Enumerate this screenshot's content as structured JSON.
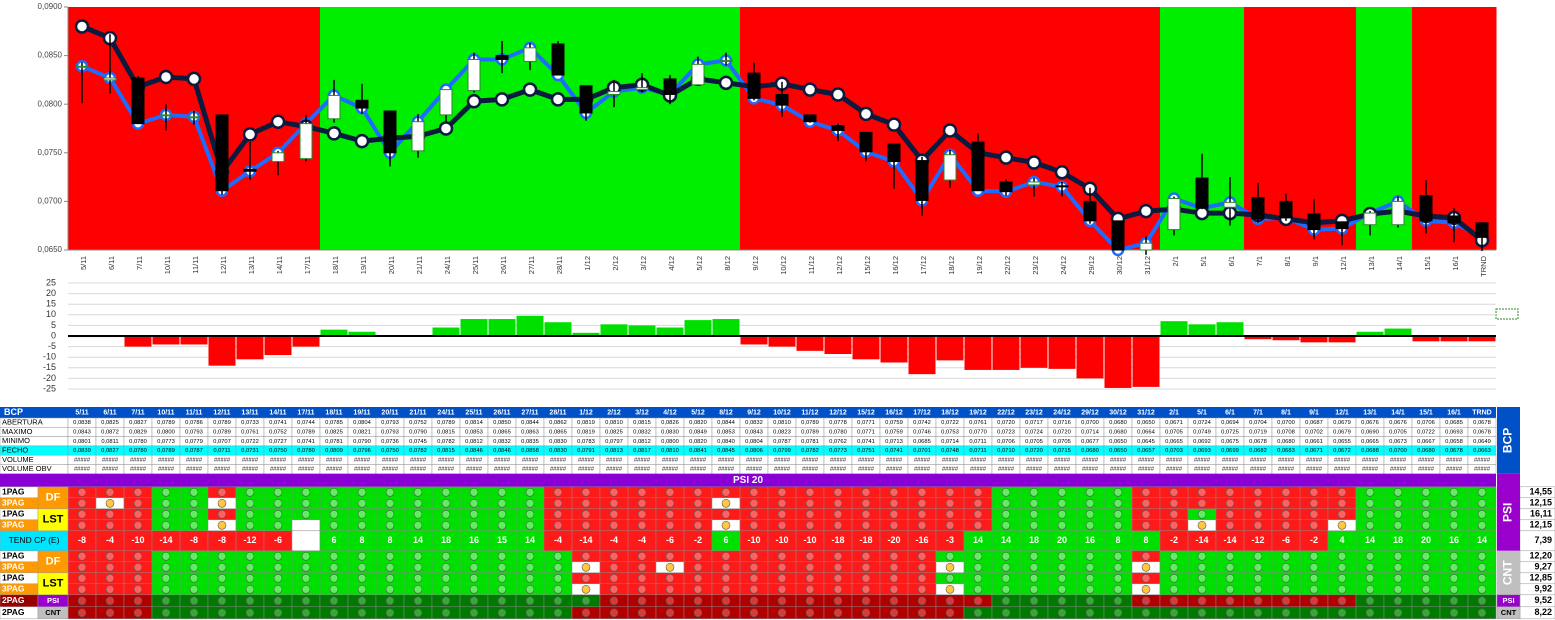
{
  "chart_data": [
    {
      "type": "candlestick",
      "categories": [
        "5/11",
        "6/11",
        "7/11",
        "10/11",
        "11/11",
        "12/11",
        "13/11",
        "14/11",
        "17/11",
        "18/11",
        "19/11",
        "20/11",
        "21/11",
        "24/11",
        "25/11",
        "26/11",
        "27/11",
        "28/11",
        "1/12",
        "2/12",
        "3/12",
        "4/12",
        "5/12",
        "8/12",
        "9/12",
        "10/12",
        "11/12",
        "12/12",
        "15/12",
        "16/12",
        "17/12",
        "18/12",
        "19/12",
        "22/12",
        "23/12",
        "24/12",
        "29/12",
        "30/12",
        "31/12",
        "2/1",
        "5/1",
        "6/1",
        "7/1",
        "8/1",
        "9/1",
        "12/1",
        "13/1",
        "14/1",
        "15/1",
        "16/1",
        "TRND"
      ],
      "ohlc": [
        {
          "name": "ABERTURA",
          "values": [
            0.0838,
            0.0825,
            0.0827,
            0.0789,
            0.0786,
            0.0789,
            0.0733,
            0.0741,
            0.0744,
            0.0785,
            0.0804,
            0.0793,
            0.0752,
            0.0789,
            0.0814,
            0.085,
            0.0844,
            0.0862,
            0.0819,
            0.081,
            0.0815,
            0.0826,
            0.082,
            0.0844,
            0.0832,
            0.081,
            0.0789,
            0.0778,
            0.0771,
            0.0759,
            0.0742,
            0.0722,
            0.0761,
            0.072,
            0.0717,
            0.0716,
            0.07,
            0.068,
            0.065,
            0.0671,
            0.0724,
            0.0694,
            0.0704,
            0.07,
            0.0687,
            0.0679,
            0.0676,
            0.0676,
            0.0706,
            0.0685,
            0.0678
          ],
          "value_labels": [
            "0,0838",
            "0,0825",
            "0,0827",
            "0,0789",
            "0,0786",
            "0,0789",
            "0,0733",
            "0,0741",
            "0,0744",
            "0,0785",
            "0,0804",
            "0,0793",
            "0,0752",
            "0,0789",
            "0,0814",
            "0,0850",
            "0,0844",
            "0,0862",
            "0,0819",
            "0,0810",
            "0,0815",
            "0,0826",
            "0,0820",
            "0,0844",
            "0,0832",
            "0,0810",
            "0,0789",
            "0,0778",
            "0,0771",
            "0,0759",
            "0,0742",
            "0,0722",
            "0,0761",
            "0,0720",
            "0,0717",
            "0,0716",
            "0,0700",
            "0,0680",
            "0,0650",
            "0,0671",
            "0,0724",
            "0,0694",
            "0,0704",
            "0,0700",
            "0,0687",
            "0,0679",
            "0,0676",
            "0,0676",
            "0,0706",
            "0,0685",
            "0,0678"
          ]
        },
        {
          "name": "MAXIMO",
          "values": [
            0.0843,
            0.0872,
            0.0829,
            0.08,
            0.0793,
            0.0789,
            0.0761,
            0.0752,
            0.0789,
            0.0825,
            0.0821,
            0.0793,
            0.079,
            0.0815,
            0.0853,
            0.0865,
            0.0863,
            0.0865,
            0.0819,
            0.0825,
            0.0832,
            0.083,
            0.0849,
            0.0853,
            0.0843,
            0.0823,
            0.0789,
            0.078,
            0.0771,
            0.0759,
            0.0746,
            0.0753,
            0.077,
            0.0723,
            0.0724,
            0.072,
            0.0714,
            0.068,
            0.0664,
            0.0705,
            0.0749,
            0.0725,
            0.0719,
            0.0708,
            0.0702,
            0.0679,
            0.069,
            0.0705,
            0.0722,
            0.0693,
            0.0678
          ],
          "value_labels": [
            "0,0843",
            "0,0872",
            "0,0829",
            "0,0800",
            "0,0793",
            "0,0789",
            "0,0761",
            "0,0752",
            "0,0789",
            "0,0825",
            "0,0821",
            "0,0793",
            "0,0790",
            "0,0815",
            "0,0853",
            "0,0865",
            "0,0863",
            "0,0865",
            "0,0819",
            "0,0825",
            "0,0832",
            "0,0830",
            "0,0849",
            "0,0853",
            "0,0843",
            "0,0823",
            "0,0789",
            "0,0780",
            "0,0771",
            "0,0759",
            "0,0746",
            "0,0753",
            "0,0770",
            "0,0723",
            "0,0724",
            "0,0720",
            "0,0714",
            "0,0680",
            "0,0664",
            "0,0705",
            "0,0749",
            "0,0725",
            "0,0719",
            "0,0708",
            "0,0702",
            "0,0679",
            "0,0690",
            "0,0705",
            "0,0722",
            "0,0693",
            "0,0678"
          ]
        },
        {
          "name": "MINIMO",
          "values": [
            0.0801,
            0.0811,
            0.078,
            0.0773,
            0.0779,
            0.0707,
            0.0722,
            0.0727,
            0.0741,
            0.0781,
            0.079,
            0.0736,
            0.0745,
            0.0782,
            0.0812,
            0.0832,
            0.0835,
            0.083,
            0.0783,
            0.0797,
            0.0812,
            0.08,
            0.082,
            0.084,
            0.0804,
            0.0787,
            0.0781,
            0.0762,
            0.0741,
            0.0713,
            0.0685,
            0.0714,
            0.0711,
            0.0706,
            0.0705,
            0.0705,
            0.0677,
            0.065,
            0.0645,
            0.0665,
            0.0692,
            0.0675,
            0.0678,
            0.068,
            0.0661,
            0.0655,
            0.0665,
            0.0673,
            0.0667,
            0.0658,
            0.0649
          ],
          "value_labels": [
            "0,0801",
            "0,0811",
            "0,0780",
            "0,0773",
            "0,0779",
            "0,0707",
            "0,0722",
            "0,0727",
            "0,0741",
            "0,0781",
            "0,0790",
            "0,0736",
            "0,0745",
            "0,0782",
            "0,0812",
            "0,0832",
            "0,0835",
            "0,0830",
            "0,0783",
            "0,0797",
            "0,0812",
            "0,0800",
            "0,0820",
            "0,0840",
            "0,0804",
            "0,0787",
            "0,0781",
            "0,0762",
            "0,0741",
            "0,0713",
            "0,0685",
            "0,0714",
            "0,0711",
            "0,0706",
            "0,0705",
            "0,0705",
            "0,0677",
            "0,0650",
            "0,0645",
            "0,0665",
            "0,0692",
            "0,0675",
            "0,0678",
            "0,0680",
            "0,0661",
            "0,0655",
            "0,0665",
            "0,0673",
            "0,0667",
            "0,0658",
            "0,0649"
          ]
        },
        {
          "name": "FECHO",
          "values": [
            0.0839,
            0.0827,
            0.078,
            0.0789,
            0.0787,
            0.0711,
            0.0731,
            0.075,
            0.078,
            0.0809,
            0.0796,
            0.075,
            0.0782,
            0.0815,
            0.0846,
            0.0846,
            0.0858,
            0.083,
            0.0791,
            0.0813,
            0.0817,
            0.081,
            0.0841,
            0.0845,
            0.0806,
            0.0799,
            0.0782,
            0.0773,
            0.0751,
            0.0741,
            0.0701,
            0.0748,
            0.0711,
            0.071,
            0.072,
            0.0715,
            0.068,
            0.065,
            0.0657,
            0.0703,
            0.0693,
            0.0699,
            0.0682,
            0.0683,
            0.0671,
            0.0672,
            0.0688,
            0.07,
            0.068,
            0.0678,
            0.0663
          ],
          "value_labels": [
            "0,0839",
            "0,0827",
            "0,0780",
            "0,0789",
            "0,0787",
            "0,0711",
            "0,0731",
            "0,0750",
            "0,0780",
            "0,0809",
            "0,0796",
            "0,0750",
            "0,0782",
            "0,0815",
            "0,0846",
            "0,0846",
            "0,0858",
            "0,0830",
            "0,0791",
            "0,0813",
            "0,0817",
            "0,0810",
            "0,0841",
            "0,0845",
            "0,0806",
            "0,0799",
            "0,0782",
            "0,0773",
            "0,0751",
            "0,0741",
            "0,0701",
            "0,0748",
            "0,0711",
            "0,0710",
            "0,0720",
            "0,0715",
            "0,0680",
            "0,0650",
            "0,0657",
            "0,0703",
            "0,0693",
            "0,0699",
            "0,0682",
            "0,0683",
            "0,0671",
            "0,0672",
            "0,0688",
            "0,0700",
            "0,0680",
            "0,0678",
            "0,0663"
          ]
        }
      ],
      "close_line_color": "#1e6bff",
      "series": [
        {
          "color": "#0d1a3f",
          "values": [
            0.088,
            0.0868,
            0.0818,
            0.0828,
            0.0826,
            0.073,
            0.0769,
            0.0782,
            0.0777,
            0.077,
            0.0762,
            0.0765,
            0.0767,
            0.0775,
            0.0803,
            0.0805,
            0.0815,
            0.0805,
            0.0805,
            0.0817,
            0.082,
            0.0809,
            0.0826,
            0.0822,
            0.0818,
            0.0821,
            0.0815,
            0.081,
            0.079,
            0.0779,
            0.0742,
            0.0773,
            0.075,
            0.0745,
            0.074,
            0.073,
            0.0713,
            0.0682,
            0.069,
            0.0692,
            0.0688,
            0.0688,
            0.0686,
            0.0682,
            0.0678,
            0.068,
            0.0687,
            0.069,
            0.0685,
            0.0683,
            0.066
          ]
        }
      ],
      "backgrounds": [
        "#ff0000",
        "#ff0000",
        "#ff0000",
        "#ff0000",
        "#ff0000",
        "#ff0000",
        "#ff0000",
        "#ff0000",
        "#ff0000",
        "#00ee00",
        "#00ee00",
        "#00ee00",
        "#00ee00",
        "#00ee00",
        "#00ee00",
        "#00ee00",
        "#00ee00",
        "#00ee00",
        "#00ee00",
        "#00ee00",
        "#00ee00",
        "#00ee00",
        "#00ee00",
        "#00ee00",
        "#ff0000",
        "#ff0000",
        "#ff0000",
        "#ff0000",
        "#ff0000",
        "#ff0000",
        "#ff0000",
        "#ff0000",
        "#ff0000",
        "#ff0000",
        "#ff0000",
        "#ff0000",
        "#ff0000",
        "#ff0000",
        "#ff0000",
        "#00ee00",
        "#00ee00",
        "#00ee00",
        "#ff0000",
        "#ff0000",
        "#ff0000",
        "#ff0000",
        "#00ee00",
        "#00ee00",
        "#ff0000",
        "#ff0000",
        "#ff0000"
      ],
      "ylim": [
        0.065,
        0.09
      ],
      "yticks": [
        {
          "value": 0.065,
          "label": "0,0650"
        },
        {
          "value": 0.07,
          "label": "0,0700"
        },
        {
          "value": 0.075,
          "label": "0,0750"
        },
        {
          "value": 0.08,
          "label": "0,0800"
        },
        {
          "value": 0.085,
          "label": "0,0850"
        },
        {
          "value": 0.09,
          "label": "0,0900"
        }
      ]
    },
    {
      "type": "bar",
      "values": [
        -0.5,
        -0.5,
        -5,
        -4,
        -4,
        -14,
        -11,
        -9,
        -5,
        3,
        2,
        0,
        0,
        4,
        8,
        8,
        9.5,
        6.5,
        1.5,
        5.5,
        5,
        4,
        7.5,
        8,
        -4,
        -5,
        -7,
        -8.5,
        -11,
        -12.5,
        -18,
        -11.5,
        -16,
        -16,
        -15,
        -15.5,
        -20,
        -24.5,
        -24,
        7,
        5.5,
        6.5,
        -1.5,
        -2,
        -3,
        -3,
        2,
        3.5,
        -2.5,
        -2.5,
        -2.5
      ],
      "pos_color": "#00e000",
      "neg_color": "#ff0000",
      "ylim": [
        -25,
        25
      ],
      "yticks": [
        25,
        20,
        15,
        10,
        5,
        0,
        -5,
        -10,
        -15,
        -20,
        -25
      ],
      "grid": true
    }
  ],
  "table": {
    "title": "BCP",
    "volume_rows": [
      {
        "name": "VOLUME",
        "cells": [
          "#####",
          "#####",
          "#####",
          "#####",
          "#####",
          "#####",
          "#####",
          "#####",
          "#####",
          "#####",
          "#####",
          "#####",
          "#####",
          "#####",
          "#####",
          "#####",
          "#####",
          "#####",
          "#####",
          "#####",
          "#####",
          "#####",
          "#####",
          "#####",
          "#####",
          "#####",
          "#####",
          "#####",
          "#####",
          "#####",
          "#####",
          "#####",
          "#####",
          "#####",
          "#####",
          "#####",
          "#####",
          "#####",
          "#####",
          "#####",
          "#####",
          "#####",
          "#####",
          "#####",
          "#####",
          "#####",
          "#####",
          "#####",
          "#####",
          "#####",
          "#####"
        ]
      },
      {
        "name": "VOLUME OBV",
        "cells": [
          "#####",
          "#####",
          "#####",
          "#####",
          "#####",
          "#####",
          "#####",
          "#####",
          "#####",
          "#####",
          "#####",
          "#####",
          "#####",
          "#####",
          "#####",
          "#####",
          "#####",
          "#####",
          "#####",
          "#####",
          "#####",
          "#####",
          "#####",
          "#####",
          "#####",
          "#####",
          "#####",
          "#####",
          "#####",
          "#####",
          "#####",
          "#####",
          "#####",
          "#####",
          "#####",
          "#####",
          "#####",
          "#####",
          "#####",
          "#####",
          "#####",
          "#####",
          "#####",
          "#####",
          "#####",
          "#####",
          "#####",
          "#####",
          "#####",
          "#####",
          "#####"
        ]
      }
    ]
  },
  "signals": {
    "title": "PSI 20",
    "side_labels": [
      "PSI",
      "CNT"
    ],
    "groups": [
      {
        "tag": "DF",
        "color": "#ff9900",
        "text_color": "#ffffff",
        "rows": [
          {
            "label": "1PAG",
            "bg": "#ffffff",
            "cells": "RRRGGRGGGGGGGGGGGRRRRRRRRRRRRRRRRGGGGGRRRRRRRRGGGGG",
            "value": "14,55"
          },
          {
            "label": "3PAG",
            "bg": "#ff9900",
            "cells": "RYRGGYGGGGGGGGGGGRRRRRRYRRRRRRRRRGGGGGRRRRRRRRGGGGG",
            "value": "12,15"
          }
        ]
      },
      {
        "tag": "LST",
        "color": "#ffff00",
        "text_color": "#000000",
        "rows": [
          {
            "label": "1PAG",
            "bg": "#ffffff",
            "cells": "RRRGGRGGGGGGGGGGGRRRRRRRRRRRRRRRRGGGGGRRGRRRRRGGGGG",
            "value": "16,11"
          },
          {
            "label": "3PAG",
            "bg": "#ff9900",
            "cells": "RRRGGYGGWGGGGGGGGRRRRRRYRRRRRRRRRGGGGGRRYRRRRYGGGGG",
            "value": "12,15"
          }
        ]
      },
      {
        "tag": "DF",
        "color": "#ff9900",
        "text_color": "#ffffff",
        "rows": [
          {
            "label": "1PAG",
            "bg": "#ffffff",
            "cells": "RRRGGGGGGGGGGGGGGGRRRRRRRRRRRRRGGGGGGGRGGGGGGGGGGGG",
            "value": "12,20"
          },
          {
            "label": "3PAG",
            "bg": "#ff9900",
            "cells": "RRRGGGGGGGGGGGGGGGYRRYRRRRRRRRRYGGGGGGYGGGGGGGGGGGG",
            "value": "9,27"
          }
        ]
      },
      {
        "tag": "LST",
        "color": "#ffff00",
        "text_color": "#000000",
        "rows": [
          {
            "label": "1PAG",
            "bg": "#ffffff",
            "cells": "RRRGGGGGGGGGGGGGGGRRRRRRRRRRRRRGGGGGGGRGGGGGGGGGGGG",
            "value": "12,85"
          },
          {
            "label": "3PAG",
            "bg": "#ff9900",
            "cells": "RRRGGGGGGGGGGGGGGGYRRRRRRRRRRRRYGGGGGGYGGGGGGGGGGGG",
            "value": "9,92"
          }
        ]
      },
      {
        "tag": "PSI",
        "color": "#9900cc",
        "text_color": "#ffffff",
        "rows": [
          {
            "label": "2PAG",
            "bg": "#990000",
            "cells": "DDDEEEEEEEEEEEEEEEEDDDDDDDDDDDDDDEEEEEDDDDDDDDEEEEE",
            "value": "9,52"
          }
        ]
      },
      {
        "tag": "CNT",
        "color": "#bfbfbf",
        "text_color": "#000000",
        "rows": [
          {
            "label": "2PAG",
            "bg": "#ffffff",
            "cells": "DDDEEEEEEEEEEEEEEEDDDDDDDDDDDDDDEEEEEEEEEEEEEEEEEEE",
            "value": "8,22"
          }
        ]
      }
    ],
    "trend": {
      "label": "TEND CP (E)",
      "value": "7,39",
      "values": [
        -8,
        -4,
        -10,
        -14,
        -8,
        -8,
        -12,
        -6,
        null,
        6,
        8,
        8,
        14,
        18,
        16,
        15,
        14,
        -4,
        -14,
        -4,
        -4,
        -6,
        -2,
        6,
        -10,
        -10,
        -10,
        -18,
        -18,
        -20,
        -16,
        -3,
        14,
        14,
        18,
        20,
        16,
        8,
        8,
        -2,
        -14,
        -14,
        -12,
        -6,
        -2,
        4,
        14,
        18,
        20,
        16,
        14
      ]
    }
  }
}
